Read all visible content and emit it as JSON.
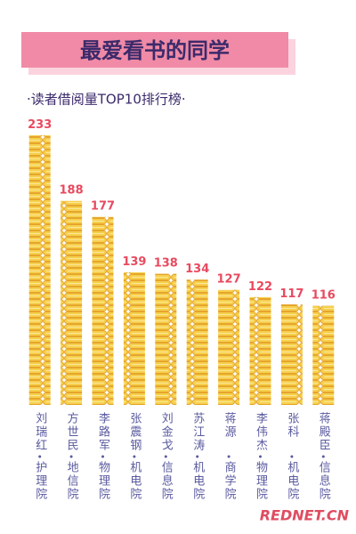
{
  "chart_data": {
    "type": "bar",
    "title": "最爱看书的同学",
    "subtitle": "·读者借阅量TOP10排行榜·",
    "categories": [
      "刘瑞红",
      "方世民",
      "李路军",
      "张震钢",
      "刘金戈",
      "苏江涛",
      "蒋源",
      "李伟杰",
      "张科",
      "蒋殿臣"
    ],
    "departments": [
      "护理院",
      "地信院",
      "物理院",
      "机电院",
      "信息院",
      "机电院",
      "商学院",
      "物理院",
      "机电院",
      "信息院"
    ],
    "values": [
      233,
      188,
      177,
      139,
      138,
      134,
      127,
      122,
      117,
      116
    ],
    "color": "#f6d04d",
    "label_color": "#e84a5f",
    "ylim": [
      48,
      233
    ],
    "watermark": "REDNET.CN"
  }
}
